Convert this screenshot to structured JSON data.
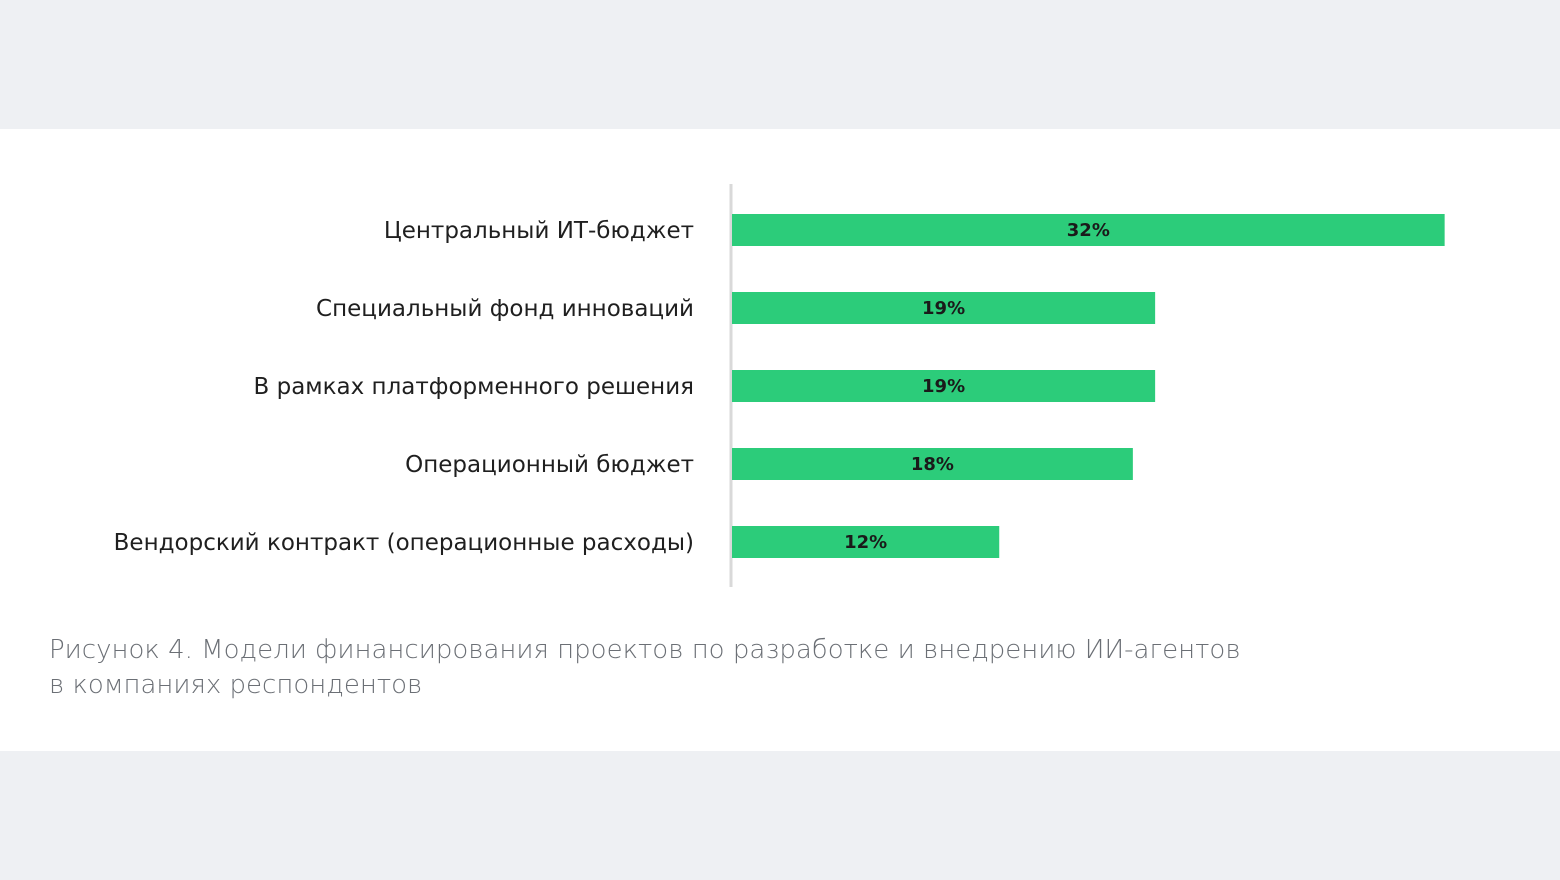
{
  "chart_data": {
    "type": "bar",
    "orientation": "horizontal",
    "categories": [
      "Центральный ИТ-бюджет",
      "Специальный фонд инноваций",
      "В рамках платформенного решения",
      "Операционный бюджет",
      "Вендорский контракт (операционные расходы)"
    ],
    "values": [
      32,
      19,
      19,
      18,
      12
    ],
    "value_labels": [
      "32%",
      "19%",
      "19%",
      "18%",
      "12%"
    ],
    "unit": "%",
    "xlim": [
      0,
      35
    ],
    "bar_color": "#2ccc7a",
    "axis_color": "#d9d9d9",
    "grid": false,
    "legend": "none"
  },
  "caption": {
    "line1": "Рисунок 4. Модели финансирования проектов по разработке и внедрению ИИ-агентов",
    "line2": "в компаниях респондентов"
  }
}
